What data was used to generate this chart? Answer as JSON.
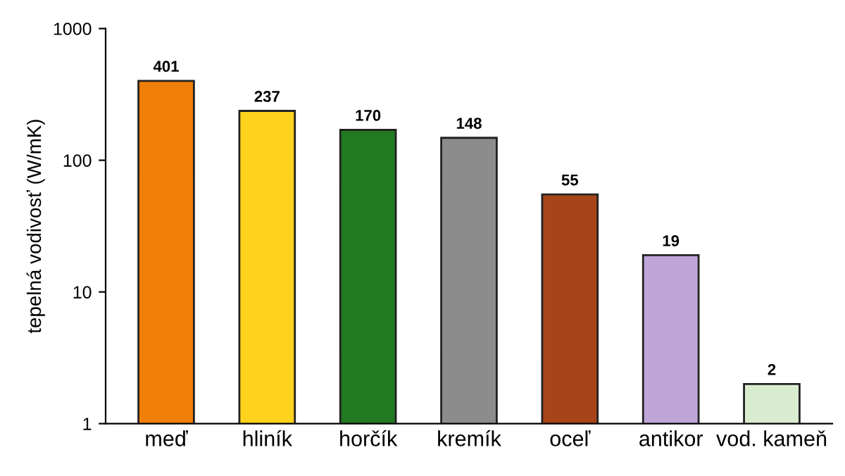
{
  "chart_data": {
    "type": "bar",
    "ylabel": "tepelná vodivosť (W/mK)",
    "categories": [
      "meď",
      "hliník",
      "horčík",
      "kremík",
      "oceľ",
      "antikor",
      "vod. kameň"
    ],
    "values": [
      401,
      237,
      170,
      148,
      55,
      19,
      2
    ],
    "colors": [
      "#f07f0a",
      "#ffd21e",
      "#217a21",
      "#8c8c8c",
      "#a8441a",
      "#c0a6d8",
      "#d9ecd0"
    ],
    "log": "y",
    "ylim": [
      1,
      1000
    ],
    "yticks": [
      1,
      10,
      100,
      1000
    ],
    "data_labels": true,
    "grid": false,
    "legend": false
  }
}
